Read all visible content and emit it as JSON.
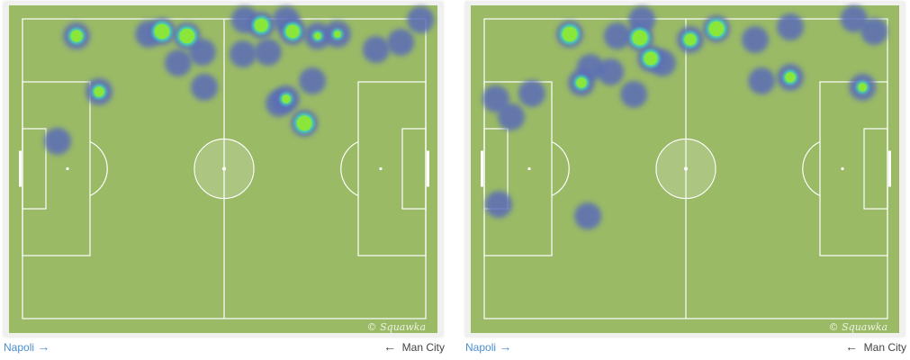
{
  "colors": {
    "pitch": "#9aba66",
    "lines": "#ffffff",
    "cold": "#5a6cb8",
    "warm": "#45d9b0",
    "hot": "#8be63a",
    "home_link": "#4a8fd0"
  },
  "watermark": "© Squawka",
  "heatmaps": [
    {
      "home": "Napoli",
      "home_arrow": "→",
      "away": "Man City",
      "away_arrow": "←",
      "points": [
        [
          13.4,
          5.7,
          0.8
        ],
        [
          19,
          24.3,
          0.7
        ],
        [
          8.7,
          40.8,
          0.3
        ],
        [
          34.6,
          4.2,
          1
        ],
        [
          40.8,
          5.7,
          1
        ],
        [
          38.6,
          14.7,
          0.3
        ],
        [
          44.6,
          11.1,
          0.3
        ],
        [
          45.1,
          22.8,
          0.3
        ],
        [
          55.1,
          0.3,
          0.3
        ],
        [
          59.2,
          2.1,
          0.9
        ],
        [
          65.4,
          0.3,
          0.3
        ],
        [
          67,
          4.2,
          0.9
        ],
        [
          73.2,
          5.7,
          0.5
        ],
        [
          78.1,
          5.1,
          0.5
        ],
        [
          54.7,
          11.7,
          0.3
        ],
        [
          60.9,
          11.1,
          0.3
        ],
        [
          87.7,
          10.2,
          0.3
        ],
        [
          93.8,
          7.8,
          0.3
        ],
        [
          98.7,
          0.3,
          0.3
        ],
        [
          71.9,
          20.7,
          0.3
        ],
        [
          65.4,
          26.7,
          0.6
        ],
        [
          63.6,
          28.2,
          0.3
        ],
        [
          69.9,
          34.8,
          1
        ],
        [
          31.3,
          5.1,
          0.4
        ]
      ]
    },
    {
      "home": "Napoli",
      "home_arrow": "→",
      "away": "Man City",
      "away_arrow": "←",
      "points": [
        [
          21.2,
          5.1,
          1
        ],
        [
          24.1,
          21.3,
          0.7
        ],
        [
          26.3,
          16.2,
          0.3
        ],
        [
          31.3,
          17.7,
          0.3
        ],
        [
          37.1,
          25.2,
          0.3
        ],
        [
          38.6,
          6.3,
          1
        ],
        [
          41.3,
          13.2,
          0.9
        ],
        [
          44.2,
          14.7,
          0.4
        ],
        [
          51.1,
          6.9,
          0.8
        ],
        [
          57.6,
          3.3,
          1
        ],
        [
          67.2,
          6.9,
          0.3
        ],
        [
          75.9,
          2.7,
          0.3
        ],
        [
          75.9,
          19.5,
          0.7
        ],
        [
          68.8,
          20.7,
          0.3
        ],
        [
          91.7,
          0,
          0.3
        ],
        [
          96.7,
          4.2,
          0.3
        ],
        [
          93.8,
          22.8,
          0.6
        ],
        [
          2.9,
          26.7,
          0.3
        ],
        [
          6.7,
          32.7,
          0.3
        ],
        [
          11.8,
          24.9,
          0.3
        ],
        [
          3.6,
          61.9,
          0.3
        ],
        [
          25.7,
          65.8,
          0.3
        ],
        [
          39.1,
          0.3,
          0.3
        ],
        [
          33,
          5.7,
          0.3
        ]
      ]
    }
  ]
}
